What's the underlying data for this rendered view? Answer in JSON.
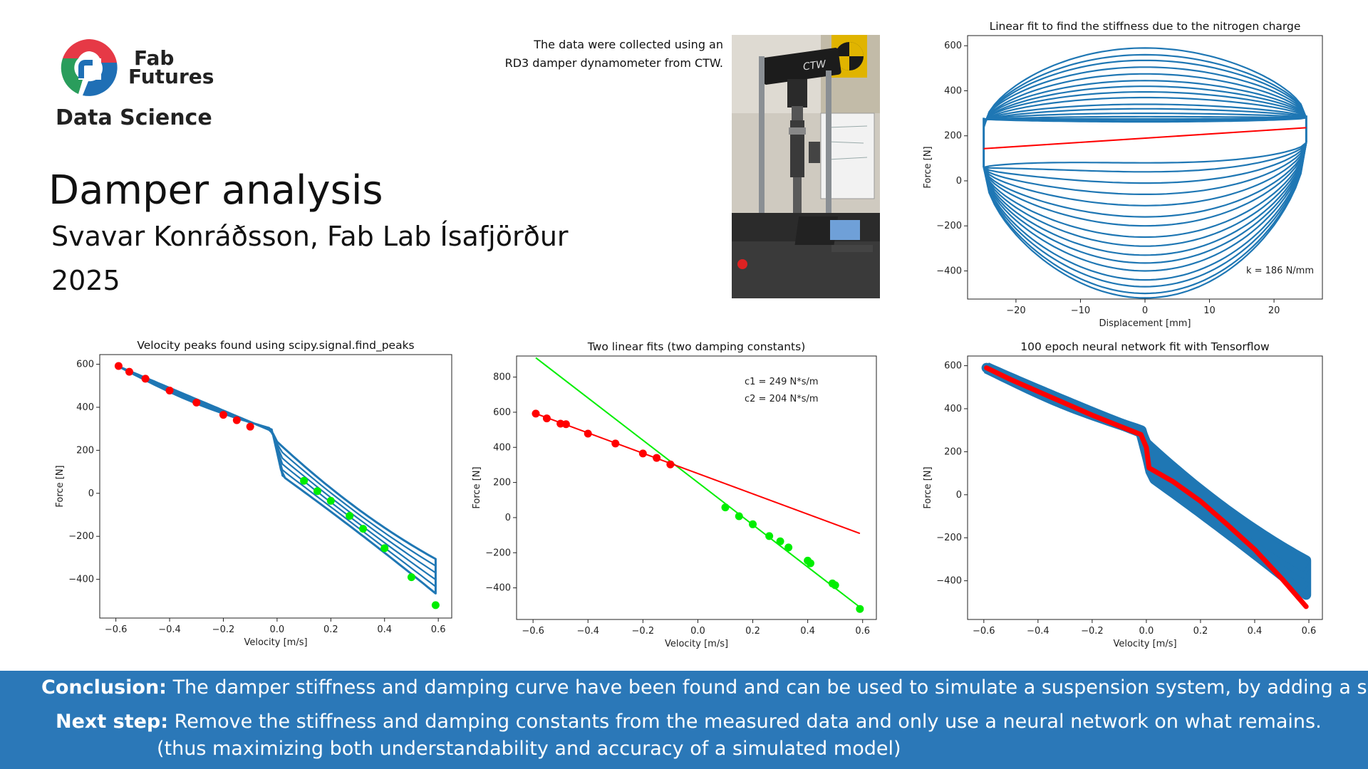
{
  "logo": {
    "line1": "Fab",
    "line2": "Futures",
    "subtitle": "Data Science"
  },
  "header": {
    "title": "Damper analysis",
    "author": "Svavar Konráðsson, Fab Lab Ísafjörður",
    "year": "2025"
  },
  "note": {
    "line1": "The data were collected using an",
    "line2": "RD3 damper dynamometer from CTW."
  },
  "photo": {
    "brand_label": "CTW"
  },
  "colors": {
    "blue": "#1f77b4",
    "red": "#ff0000",
    "green": "#00ee00",
    "footer": "#2b78b8"
  },
  "footer": {
    "conclusion_label": "Conclusion:",
    "conclusion_text": "The damper stiffness and damping curve have been found and can be used to simulate a suspension system, by adding a spring.",
    "next_label": "Next step:",
    "next_text": "Remove the stiffness and damping constants from the measured data and only use a neural network on what remains.",
    "next_text2": "(thus maximizing both understandability and accuracy of a simulated model)"
  },
  "chart_data": [
    {
      "id": "stiffness",
      "type": "line",
      "title": "Linear fit to find the stiffness due to the nitrogen charge",
      "xlabel": "Displacement [mm]",
      "ylabel": "Force [N]",
      "xlim": [
        -27.5,
        27.5
      ],
      "ylim": [
        -525,
        645
      ],
      "xticks": [
        -20,
        -10,
        0,
        10,
        20
      ],
      "yticks": [
        -400,
        -200,
        0,
        200,
        400,
        600
      ],
      "tick_labels_x": [
        "−20",
        "−10",
        "0",
        "10",
        "20"
      ],
      "tick_labels_y": [
        "−400",
        "−200",
        "0",
        "200",
        "400",
        "600"
      ],
      "hysteresis_loops": [
        {
          "upper": 590,
          "lower": -520,
          "left": 235
        },
        {
          "upper": 560,
          "lower": -500,
          "left": 240
        },
        {
          "upper": 535,
          "lower": -470,
          "left": 245
        },
        {
          "upper": 505,
          "lower": -440,
          "left": 250
        },
        {
          "upper": 475,
          "lower": -400,
          "left": 250
        },
        {
          "upper": 445,
          "lower": -365,
          "left": 255
        },
        {
          "upper": 420,
          "lower": -330,
          "left": 255
        },
        {
          "upper": 395,
          "lower": -290,
          "left": 260
        },
        {
          "upper": 370,
          "lower": -250,
          "left": 260
        },
        {
          "upper": 340,
          "lower": -200,
          "left": 265
        },
        {
          "upper": 320,
          "lower": -160,
          "left": 265
        },
        {
          "upper": 300,
          "lower": -110,
          "left": 270
        },
        {
          "upper": 285,
          "lower": -60,
          "left": 270
        },
        {
          "upper": 275,
          "lower": -10,
          "left": 272
        },
        {
          "upper": 268,
          "lower": 40,
          "left": 275
        },
        {
          "upper": 262,
          "lower": 80,
          "left": 275
        }
      ],
      "fit_line": {
        "x": [
          -25,
          25
        ],
        "y": [
          143,
          236
        ]
      },
      "annotation": "k = 186 N/mm"
    },
    {
      "id": "peaks",
      "type": "scatter",
      "title": "Velocity peaks found using scipy.signal.find_peaks",
      "xlabel": "Velocity [m/s]",
      "ylabel": "Force [N]",
      "xlim": [
        -0.66,
        0.65
      ],
      "ylim": [
        -580,
        645
      ],
      "xticks": [
        -0.6,
        -0.4,
        -0.2,
        0.0,
        0.2,
        0.4,
        0.6
      ],
      "yticks": [
        -400,
        -200,
        0,
        200,
        400,
        600
      ],
      "tick_labels_x": [
        "−0.6",
        "−0.4",
        "−0.2",
        "0.0",
        "0.2",
        "0.4",
        "0.6"
      ],
      "tick_labels_y": [
        "−400",
        "−200",
        "0",
        "200",
        "400",
        "600"
      ],
      "red_points": {
        "x": [
          -0.59,
          -0.55,
          -0.49,
          -0.4,
          -0.3,
          -0.2,
          -0.15,
          -0.1
        ],
        "y": [
          592,
          565,
          533,
          478,
          422,
          365,
          340,
          310
        ]
      },
      "green_points": {
        "x": [
          0.1,
          0.15,
          0.2,
          0.27,
          0.32,
          0.4,
          0.5,
          0.59
        ],
        "y": [
          58,
          10,
          -35,
          -105,
          -165,
          -255,
          -390,
          -520
        ]
      }
    },
    {
      "id": "twofits",
      "type": "scatter",
      "title": "Two linear fits (two damping constants)",
      "xlabel": "Velocity [m/s]",
      "ylabel": "Force [N]",
      "xlim": [
        -0.66,
        0.65
      ],
      "ylim": [
        -580,
        920
      ],
      "xticks": [
        -0.6,
        -0.4,
        -0.2,
        0.0,
        0.2,
        0.4,
        0.6
      ],
      "yticks": [
        -400,
        -200,
        0,
        200,
        400,
        600,
        800
      ],
      "tick_labels_x": [
        "−0.6",
        "−0.4",
        "−0.2",
        "0.0",
        "0.2",
        "0.4",
        "0.6"
      ],
      "tick_labels_y": [
        "−400",
        "−200",
        "0",
        "200",
        "400",
        "600",
        "800"
      ],
      "red_points": {
        "x": [
          -0.59,
          -0.55,
          -0.5,
          -0.48,
          -0.4,
          -0.3,
          -0.2,
          -0.15,
          -0.1
        ],
        "y": [
          592,
          565,
          535,
          532,
          478,
          422,
          365,
          340,
          303
        ]
      },
      "green_points": {
        "x": [
          0.1,
          0.15,
          0.2,
          0.26,
          0.3,
          0.33,
          0.4,
          0.41,
          0.49,
          0.5,
          0.59
        ],
        "y": [
          58,
          8,
          -38,
          -105,
          -135,
          -170,
          -245,
          -260,
          -375,
          -385,
          -520
        ]
      },
      "red_line": {
        "x": [
          -0.59,
          0.59
        ],
        "y": [
          592,
          -90
        ]
      },
      "green_line": {
        "x": [
          -0.59,
          0.59
        ],
        "y": [
          910,
          -510
        ]
      },
      "legend": [
        "c1 = 249 N*s/m",
        "c2 = 204 N*s/m"
      ]
    },
    {
      "id": "nn",
      "type": "line",
      "title": "100 epoch neural network fit with Tensorflow",
      "xlabel": "Velocity [m/s]",
      "ylabel": "Force [N]",
      "xlim": [
        -0.66,
        0.65
      ],
      "ylim": [
        -580,
        645
      ],
      "xticks": [
        -0.6,
        -0.4,
        -0.2,
        0.0,
        0.2,
        0.4,
        0.6
      ],
      "yticks": [
        -400,
        -200,
        0,
        200,
        400,
        600
      ],
      "tick_labels_x": [
        "−0.6",
        "−0.4",
        "−0.2",
        "0.0",
        "0.2",
        "0.4",
        "0.6"
      ],
      "tick_labels_y": [
        "−400",
        "−200",
        "0",
        "200",
        "400",
        "600"
      ],
      "fit_curve": {
        "x": [
          -0.59,
          -0.5,
          -0.4,
          -0.3,
          -0.2,
          -0.1,
          -0.02,
          0.0,
          0.01,
          0.1,
          0.2,
          0.3,
          0.4,
          0.5,
          0.59
        ],
        "y": [
          590,
          535,
          480,
          425,
          370,
          320,
          280,
          220,
          125,
          60,
          -30,
          -140,
          -255,
          -390,
          -520
        ]
      }
    }
  ]
}
